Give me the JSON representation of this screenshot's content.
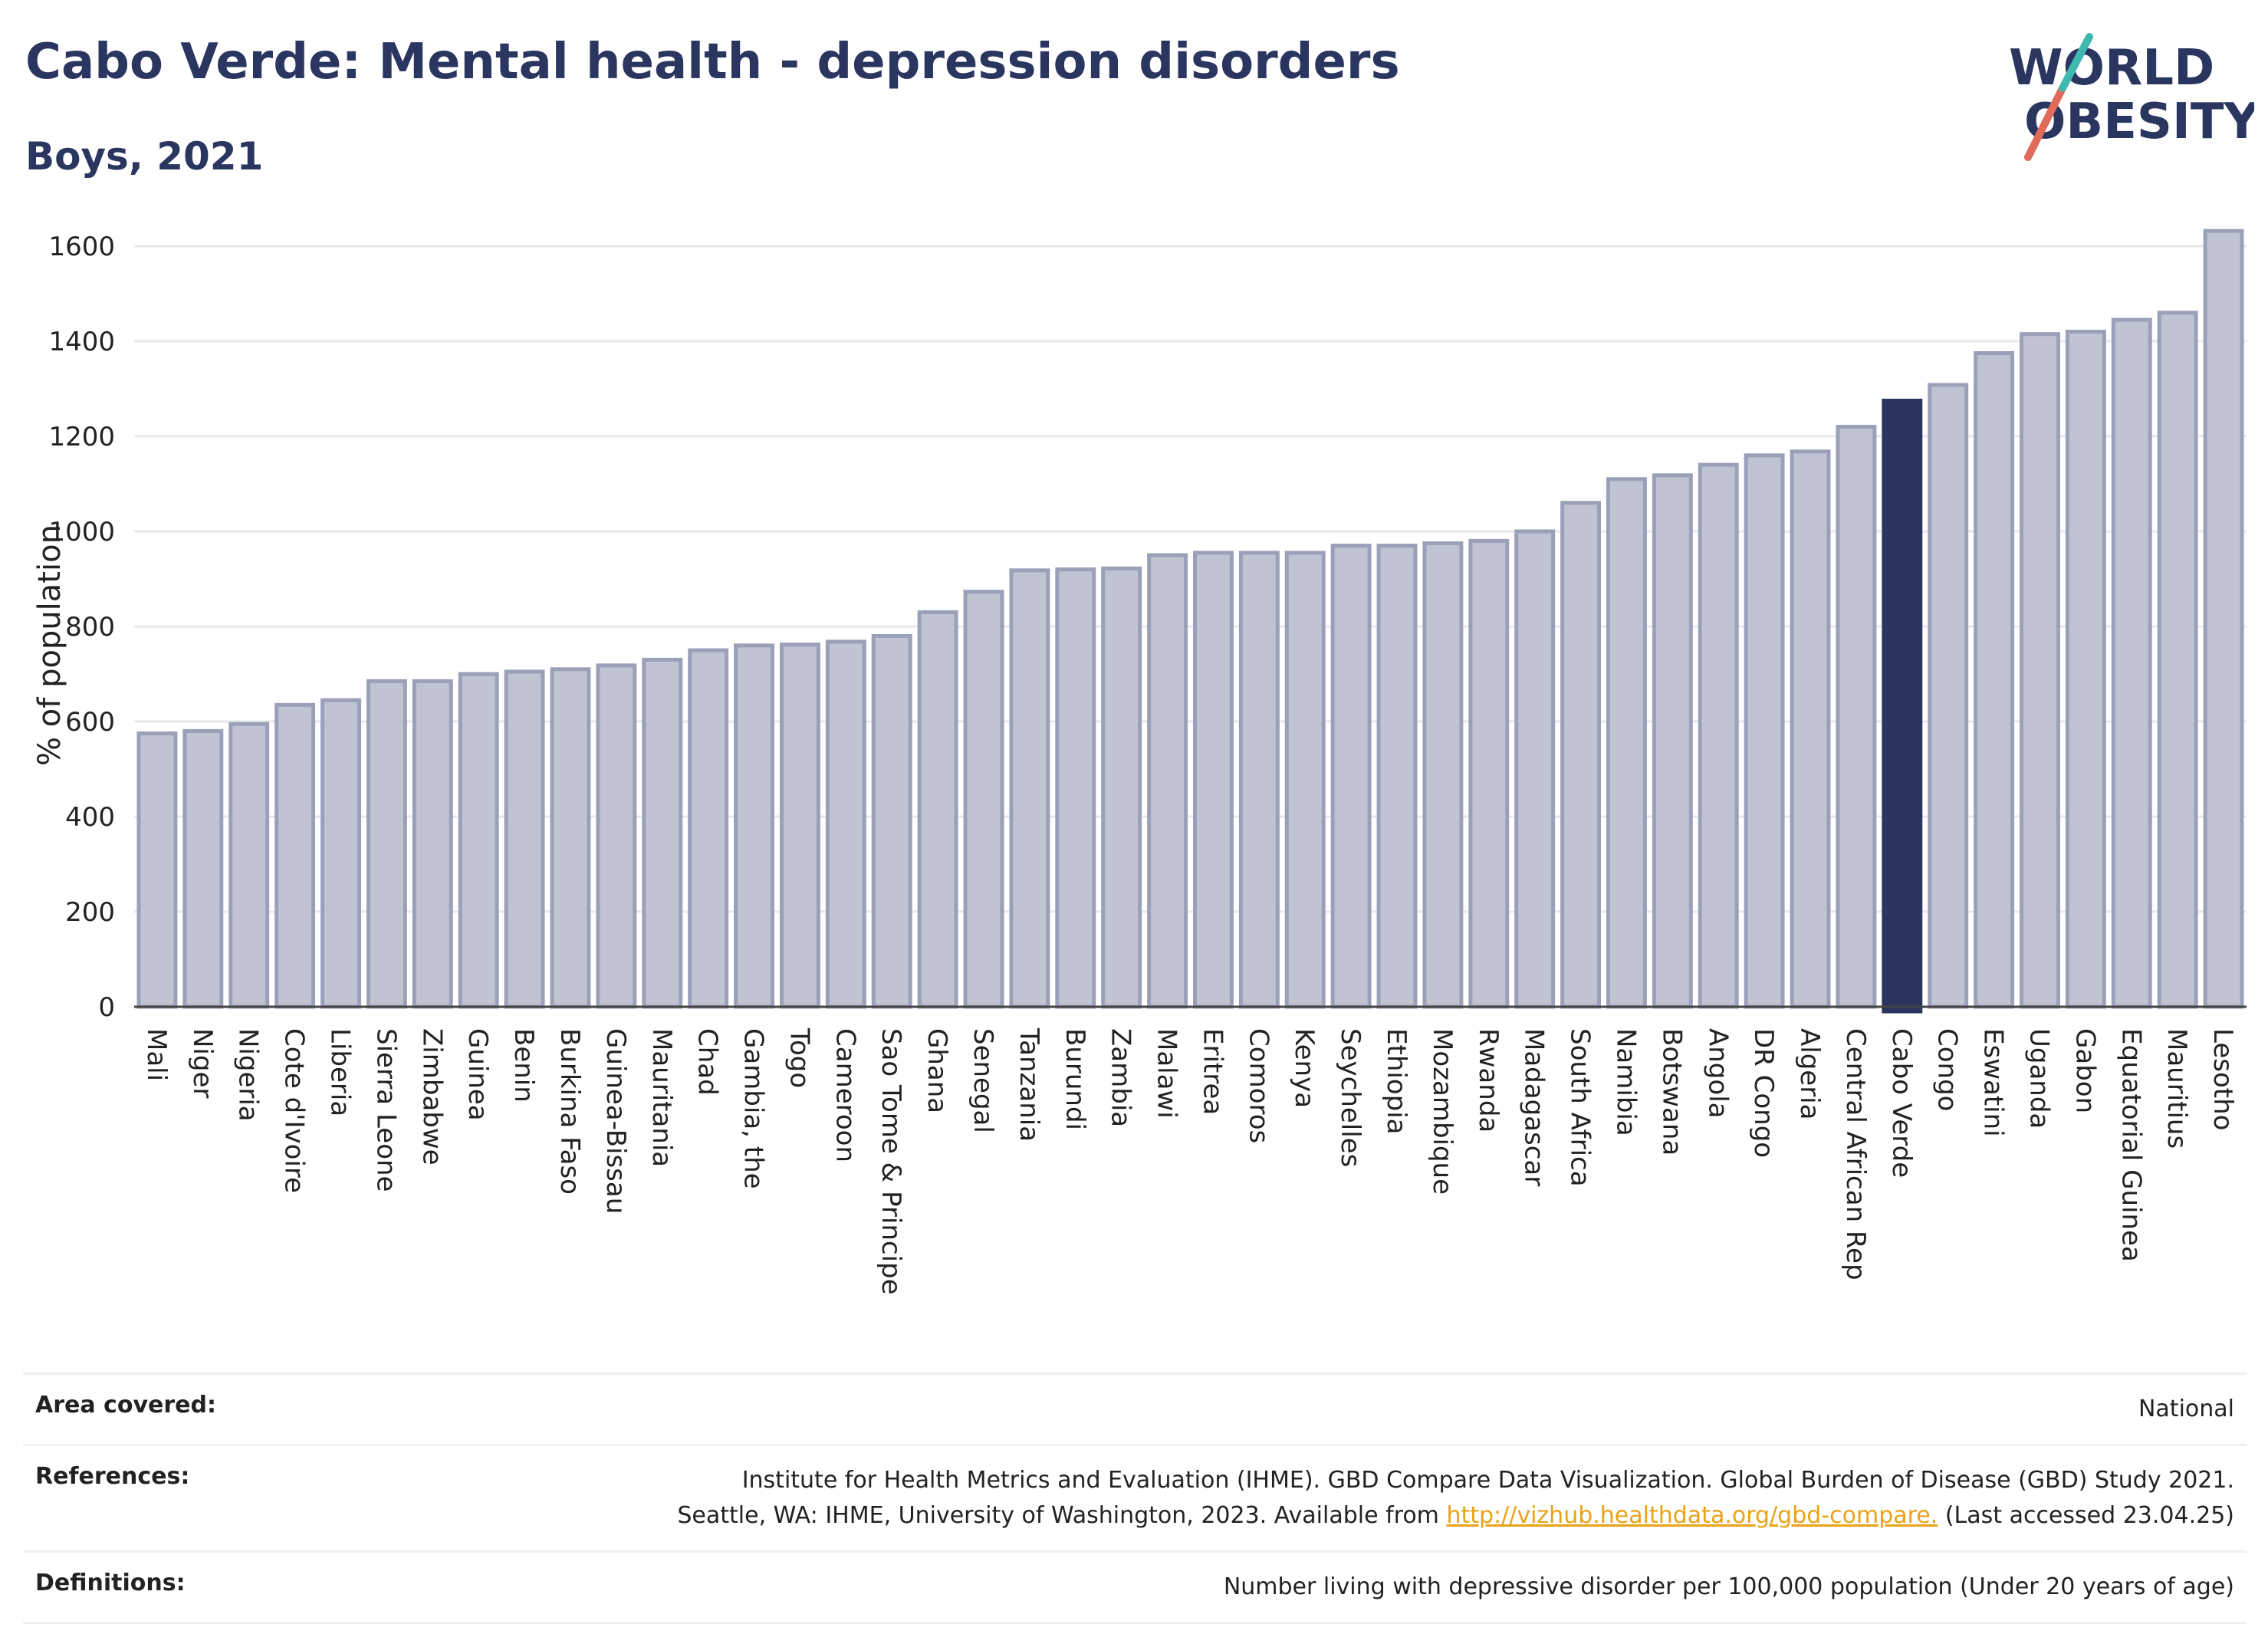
{
  "header": {
    "title": "Cabo Verde: Mental health - depression disorders",
    "subtitle": "Boys, 2021"
  },
  "logo": {
    "line1": "WORLD",
    "line2": "OBESITY"
  },
  "colors": {
    "bar": "#bfc3d2",
    "bar_edge": "#9aa0b8",
    "highlight": "#2a3560",
    "grid": "#e6e8ee"
  },
  "chart_data": {
    "type": "bar",
    "ylabel": "% of population",
    "xlabel": "",
    "ylim": [
      0,
      1650
    ],
    "yticks": [
      0,
      200,
      400,
      600,
      800,
      1000,
      1200,
      1400,
      1600
    ],
    "grid": "horizontal",
    "highlight": "Cabo Verde",
    "categories": [
      "Mali",
      "Niger",
      "Nigeria",
      "Cote d'Ivoire",
      "Liberia",
      "Sierra Leone",
      "Zimbabwe",
      "Guinea",
      "Benin",
      "Burkina Faso",
      "Guinea-Bissau",
      "Mauritania",
      "Chad",
      "Gambia, the",
      "Togo",
      "Cameroon",
      "Sao Tome & Principe",
      "Ghana",
      "Senegal",
      "Tanzania",
      "Burundi",
      "Zambia",
      "Malawi",
      "Eritrea",
      "Comoros",
      "Kenya",
      "Seychelles",
      "Ethiopia",
      "Mozambique",
      "Rwanda",
      "Madagascar",
      "South Africa",
      "Namibia",
      "Botswana",
      "Angola",
      "DR Congo",
      "Algeria",
      "Central African Rep",
      "Cabo Verde",
      "Congo",
      "Eswatini",
      "Uganda",
      "Gabon",
      "Equatorial Guinea",
      "Mauritius",
      "Lesotho"
    ],
    "values": [
      575,
      580,
      595,
      635,
      645,
      685,
      685,
      700,
      705,
      710,
      718,
      730,
      750,
      760,
      762,
      768,
      780,
      830,
      873,
      918,
      920,
      922,
      950,
      955,
      955,
      955,
      970,
      970,
      975,
      980,
      1000,
      1060,
      1110,
      1118,
      1140,
      1160,
      1168,
      1220,
      1275,
      1308,
      1375,
      1415,
      1420,
      1445,
      1460,
      1632
    ]
  },
  "info": {
    "area_label": "Area covered:",
    "area_value": "National",
    "references_label": "References:",
    "references_line1": "Institute for Health Metrics and Evaluation (IHME). GBD Compare Data Visualization. Global Burden of Disease (GBD) Study 2021.",
    "references_line2_prefix": "Seattle, WA: IHME, University of Washington, 2023. Available from ",
    "references_link": "http://vizhub.healthdata.org/gbd-compare.",
    "references_line2_suffix": " (Last accessed 23.04.25)",
    "definitions_label": "Definitions:",
    "definitions_value": "Number living with depressive disorder per 100,000 population (Under 20 years of age)"
  }
}
